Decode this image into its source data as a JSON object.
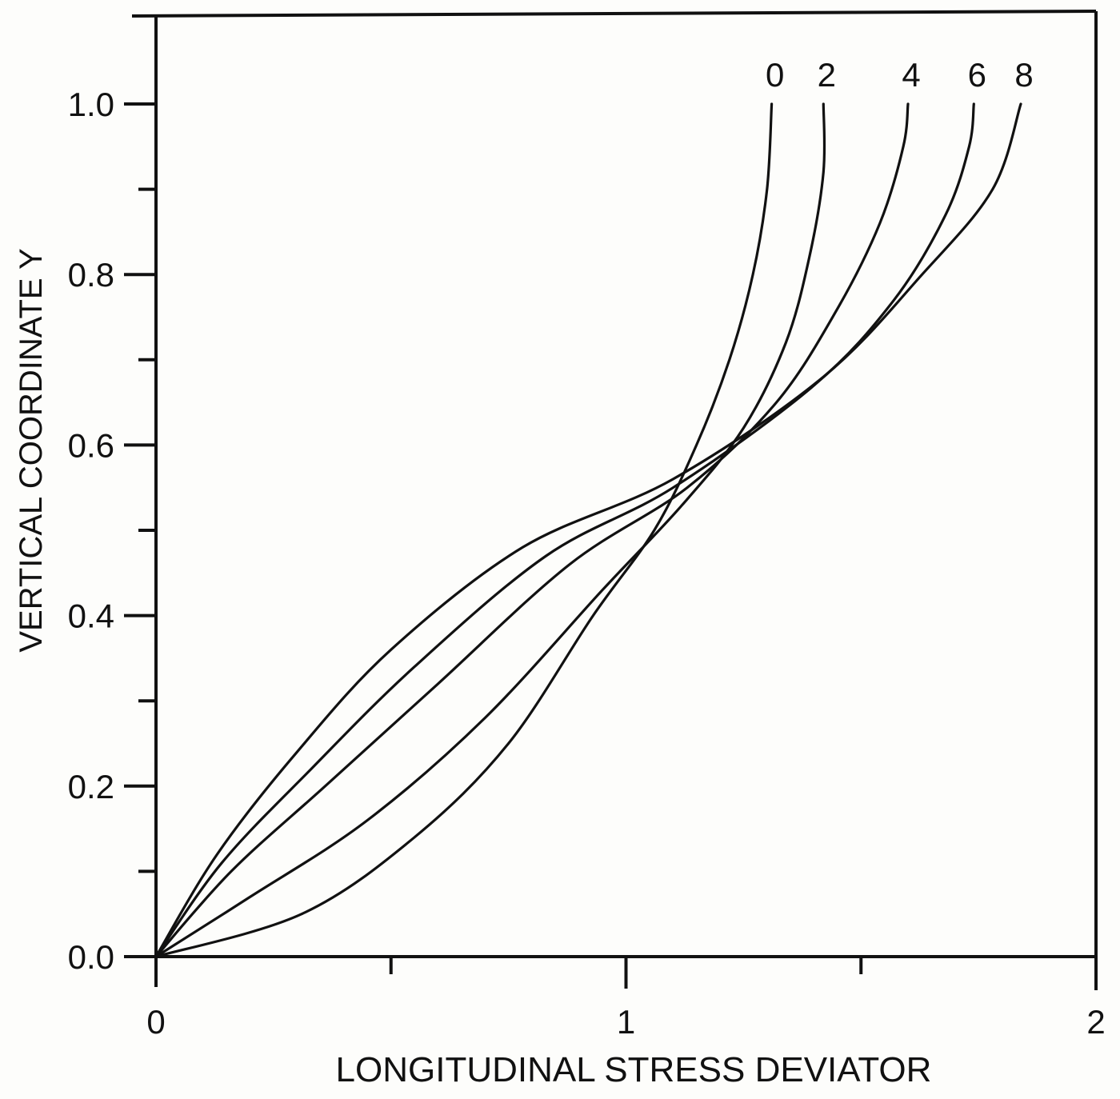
{
  "chart_data": {
    "type": "line",
    "title": "",
    "xlabel": "LONGITUDINAL STRESS DEVIATOR",
    "ylabel": "VERTICAL COORDINATE Y",
    "xlim": [
      0,
      2
    ],
    "ylim": [
      0,
      1.1
    ],
    "x_ticks": [
      0,
      0.5,
      1,
      1.5,
      2
    ],
    "x_tick_labels": [
      "0",
      "",
      "1",
      "",
      "2"
    ],
    "y_ticks": [
      0.0,
      0.1,
      0.2,
      0.3,
      0.4,
      0.5,
      0.6,
      0.7,
      0.8,
      0.9,
      1.0
    ],
    "y_tick_labels": [
      "0.0",
      "",
      "0.2",
      "",
      "0.4",
      "",
      "0.6",
      "",
      "0.8",
      "",
      "1.0"
    ],
    "grid": false,
    "legend": "inline curve labels at top (0, 2, 4, 6, 8)",
    "series": [
      {
        "name": "0",
        "points": [
          [
            0,
            0
          ],
          [
            0.31,
            0.05
          ],
          [
            0.55,
            0.14
          ],
          [
            0.75,
            0.25
          ],
          [
            0.93,
            0.4
          ],
          [
            1.06,
            0.5
          ],
          [
            1.15,
            0.6
          ],
          [
            1.22,
            0.7
          ],
          [
            1.27,
            0.8
          ],
          [
            1.3,
            0.9
          ],
          [
            1.31,
            1.0
          ]
        ]
      },
      {
        "name": "2",
        "points": [
          [
            0,
            0
          ],
          [
            0.2,
            0.07
          ],
          [
            0.45,
            0.16
          ],
          [
            0.7,
            0.28
          ],
          [
            0.95,
            0.43
          ],
          [
            1.12,
            0.53
          ],
          [
            1.25,
            0.62
          ],
          [
            1.34,
            0.72
          ],
          [
            1.39,
            0.82
          ],
          [
            1.42,
            0.92
          ],
          [
            1.42,
            1.0
          ]
        ]
      },
      {
        "name": "4",
        "points": [
          [
            0,
            0
          ],
          [
            0.16,
            0.1
          ],
          [
            0.36,
            0.2
          ],
          [
            0.6,
            0.32
          ],
          [
            0.88,
            0.46
          ],
          [
            1.13,
            0.55
          ],
          [
            1.32,
            0.65
          ],
          [
            1.45,
            0.76
          ],
          [
            1.54,
            0.86
          ],
          [
            1.59,
            0.95
          ],
          [
            1.6,
            1.0
          ]
        ]
      },
      {
        "name": "6",
        "points": [
          [
            0,
            0
          ],
          [
            0.14,
            0.11
          ],
          [
            0.33,
            0.22
          ],
          [
            0.55,
            0.34
          ],
          [
            0.83,
            0.47
          ],
          [
            1.1,
            0.55
          ],
          [
            1.4,
            0.67
          ],
          [
            1.57,
            0.77
          ],
          [
            1.68,
            0.87
          ],
          [
            1.73,
            0.95
          ],
          [
            1.74,
            1.0
          ]
        ]
      },
      {
        "name": "8",
        "points": [
          [
            0,
            0
          ],
          [
            0.13,
            0.12
          ],
          [
            0.3,
            0.24
          ],
          [
            0.5,
            0.36
          ],
          [
            0.78,
            0.48
          ],
          [
            1.1,
            0.56
          ],
          [
            1.42,
            0.68
          ],
          [
            1.63,
            0.8
          ],
          [
            1.78,
            0.9
          ],
          [
            1.84,
            1.0
          ]
        ]
      }
    ]
  },
  "style": {
    "line_color": "#111111",
    "background": "#fdfdfb"
  }
}
